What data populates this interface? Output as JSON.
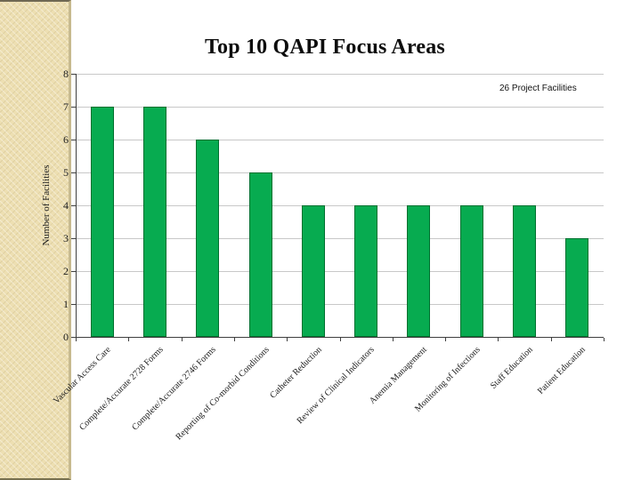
{
  "slide": {
    "legend_label": "26 Project Facilities",
    "colors": {
      "bar_fill": "#07AB50",
      "bar_border": "#00702F",
      "gridline": "#C8C8C8",
      "axis": "#3F3F3F",
      "sidebar_bg": "#EDDFB2",
      "text": "#0d0d0d"
    }
  },
  "chart_data": {
    "type": "bar",
    "title": "Top 10 QAPI Focus Areas",
    "xlabel": "",
    "ylabel": "Number of Facilities",
    "ylim": [
      0,
      8
    ],
    "ytick_interval": 1,
    "grid": true,
    "legend": [
      "26 Project Facilities"
    ],
    "legend_position": "top-right",
    "categories": [
      "Vascular Access Care",
      "Complete/Accurate 2728 Forms",
      "Complete/Accurate 2746 Forms",
      "Reporting of Co-morbid Conditions",
      "Catheter Reduction",
      "Review of Clinical Indicators",
      "Anemia Management",
      "Monitoring of Infections",
      "Staff Education",
      "Patient Education"
    ],
    "values": [
      7,
      7,
      6,
      5,
      4,
      4,
      4,
      4,
      4,
      3
    ]
  }
}
